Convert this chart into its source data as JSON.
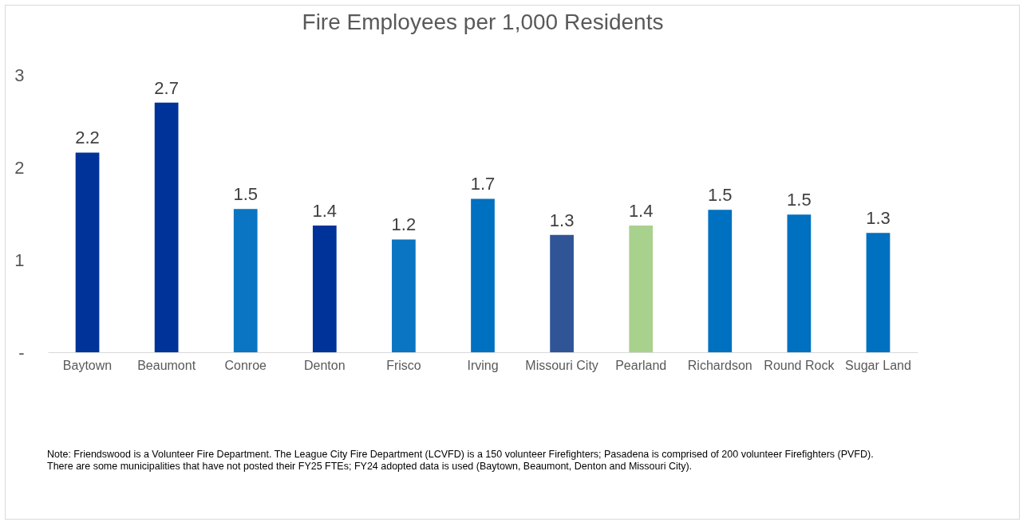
{
  "chart_data": {
    "type": "bar",
    "title": "Fire Employees per 1,000 Residents",
    "categories": [
      "Baytown",
      "Beaumont",
      "Conroe",
      "Denton",
      "Frisco",
      "Irving",
      "Missouri City",
      "Pearland",
      "Richardson",
      "Round Rock",
      "Sugar Land"
    ],
    "values": [
      2.16,
      2.7,
      1.55,
      1.37,
      1.22,
      1.66,
      1.27,
      1.37,
      1.54,
      1.49,
      1.29
    ],
    "value_labels": [
      "2.2",
      "2.7",
      "1.5",
      "1.4",
      "1.2",
      "1.7",
      "1.3",
      "1.4",
      "1.5",
      "1.5",
      "1.3"
    ],
    "colors": [
      "#003399",
      "#003399",
      "#0a75c2",
      "#003399",
      "#0a75c2",
      "#0070c0",
      "#2f5597",
      "#a9d18e",
      "#0070c0",
      "#0070c0",
      "#0070c0"
    ],
    "ylim": [
      0,
      3
    ],
    "yticks": [
      {
        "value": 0,
        "label": "-"
      },
      1,
      2,
      3
    ],
    "annotations": [
      "Note: Friendswood is a Volunteer Fire Department. The League City Fire Department (LCVFD) is a 150 volunteer Firefighters; Pasadena is comprised of 200 volunteer Firefighters  (PVFD).",
      "There are some municipalities that have not posted their FY25 FTEs; FY24 adopted data is used (Baytown, Beaumont, Denton and Missouri City)."
    ]
  }
}
